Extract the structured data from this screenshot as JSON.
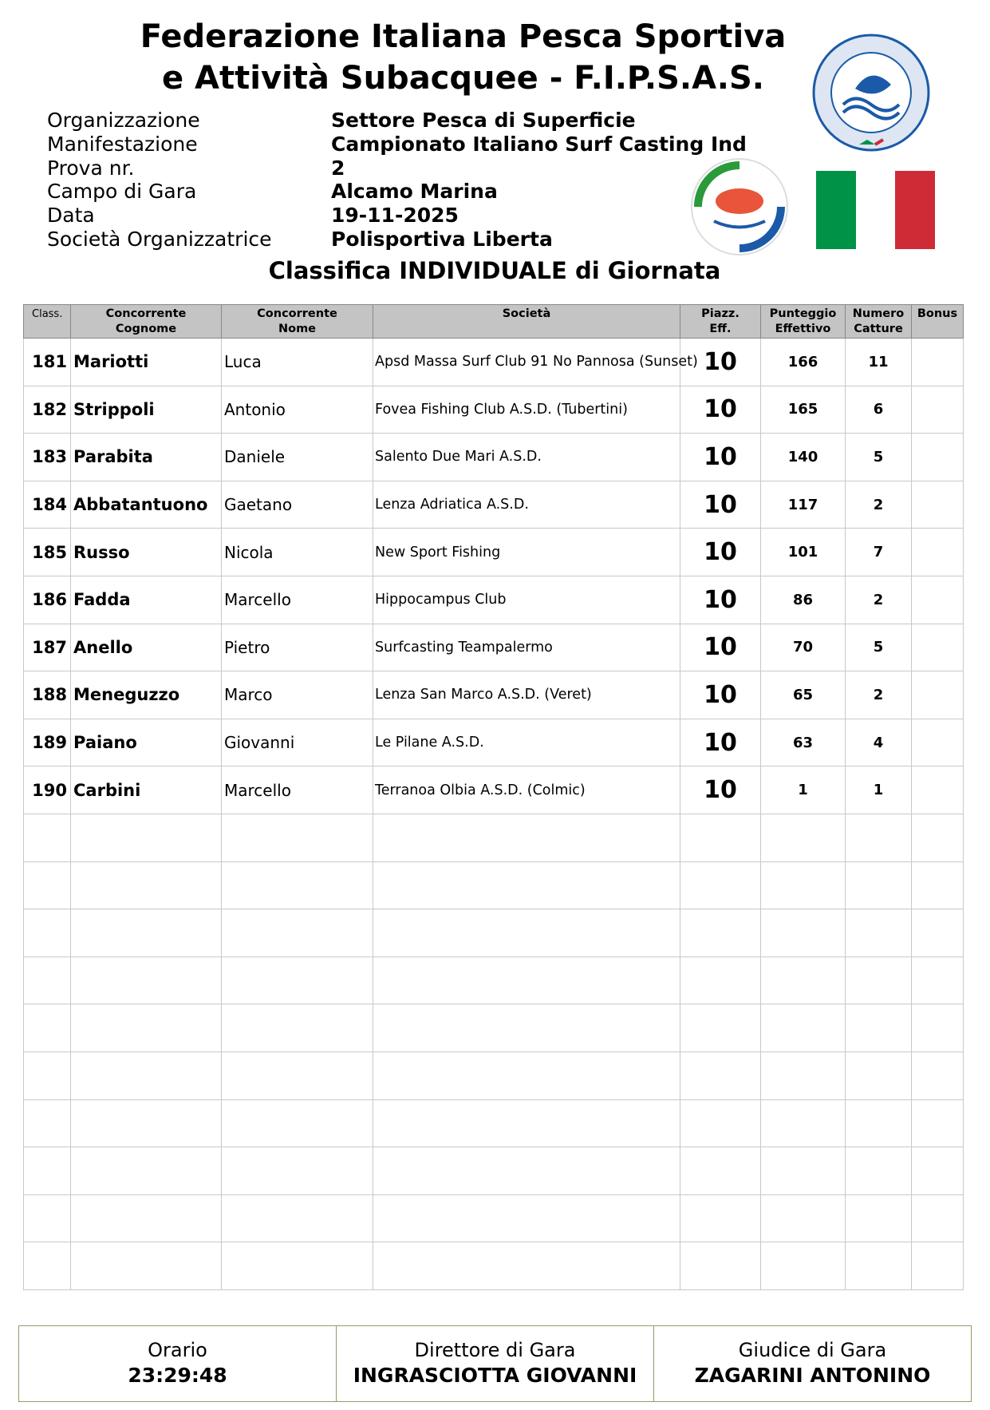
{
  "header": {
    "title_line1": "Federazione Italiana Pesca Sportiva",
    "title_line2": "e Attività Subacquee - F.I.P.S.A.S."
  },
  "info": [
    {
      "label": "Organizzazione",
      "value": "Settore Pesca di Superficie"
    },
    {
      "label": "Manifestazione",
      "value": "Campionato Italiano Surf Casting Ind"
    },
    {
      "label": "Prova nr.",
      "value": "2"
    },
    {
      "label": "Campo di Gara",
      "value": "Alcamo Marina"
    },
    {
      "label": "Data",
      "value": "19-11-2025"
    },
    {
      "label": "Società Organizzatrice",
      "value": "Polisportiva Liberta"
    }
  ],
  "subtitle": "Classifica INDIVIDUALE di Giornata",
  "logos": {
    "fipsas": "FEDERAZIONE ITALIANA PESCA SPORTIVA E ATTIVITÀ SUBACQUEE - FIPSAS",
    "catch_release": "FIPSAS CATCH & RELEASE"
  },
  "colors": {
    "header_bg": "#c4c4c4",
    "footer_border": "#9a9a6a",
    "flag": [
      "#009246",
      "#ffffff",
      "#ce2b37"
    ]
  },
  "table": {
    "headers": [
      "Class.",
      "Concorrente\nCognome",
      "Concorrente\nNome",
      "Società",
      "Piazz.\nEff.",
      "Punteggio\nEffettivo",
      "Numero\nCatture",
      "Bonus"
    ],
    "rows": [
      {
        "pos": "181",
        "surname": "Mariotti",
        "name": "Luca",
        "club": "Apsd Massa Surf Club 91 No Pannosa (Sunset)",
        "piazz": "10",
        "score": "166",
        "catches": "11",
        "bonus": ""
      },
      {
        "pos": "182",
        "surname": "Strippoli",
        "name": "Antonio",
        "club": "Fovea Fishing Club A.S.D. (Tubertini)",
        "piazz": "10",
        "score": "165",
        "catches": "6",
        "bonus": ""
      },
      {
        "pos": "183",
        "surname": "Parabita",
        "name": "Daniele",
        "club": "Salento Due Mari A.S.D.",
        "piazz": "10",
        "score": "140",
        "catches": "5",
        "bonus": ""
      },
      {
        "pos": "184",
        "surname": "Abbatantuono",
        "name": "Gaetano",
        "club": "Lenza Adriatica A.S.D.",
        "piazz": "10",
        "score": "117",
        "catches": "2",
        "bonus": ""
      },
      {
        "pos": "185",
        "surname": "Russo",
        "name": "Nicola",
        "club": "New Sport Fishing",
        "piazz": "10",
        "score": "101",
        "catches": "7",
        "bonus": ""
      },
      {
        "pos": "186",
        "surname": "Fadda",
        "name": "Marcello",
        "club": "Hippocampus Club",
        "piazz": "10",
        "score": "86",
        "catches": "2",
        "bonus": ""
      },
      {
        "pos": "187",
        "surname": "Anello",
        "name": "Pietro",
        "club": "Surfcasting Teampalermo",
        "piazz": "10",
        "score": "70",
        "catches": "5",
        "bonus": ""
      },
      {
        "pos": "188",
        "surname": "Meneguzzo",
        "name": "Marco",
        "club": "Lenza San Marco A.S.D. (Veret)",
        "piazz": "10",
        "score": "65",
        "catches": "2",
        "bonus": ""
      },
      {
        "pos": "189",
        "surname": "Paiano",
        "name": "Giovanni",
        "club": "Le Pilane A.S.D.",
        "piazz": "10",
        "score": "63",
        "catches": "4",
        "bonus": ""
      },
      {
        "pos": "190",
        "surname": "Carbini",
        "name": "Marcello",
        "club": "Terranoa Olbia A.S.D. (Colmic)",
        "piazz": "10",
        "score": "1",
        "catches": "1",
        "bonus": ""
      }
    ]
  },
  "footer": [
    {
      "label": "Orario",
      "value": "23:29:48"
    },
    {
      "label": "Direttore di Gara",
      "value": "INGRASCIOTTA GIOVANNI"
    },
    {
      "label": "Giudice di Gara",
      "value": "ZAGARINI ANTONINO"
    }
  ]
}
